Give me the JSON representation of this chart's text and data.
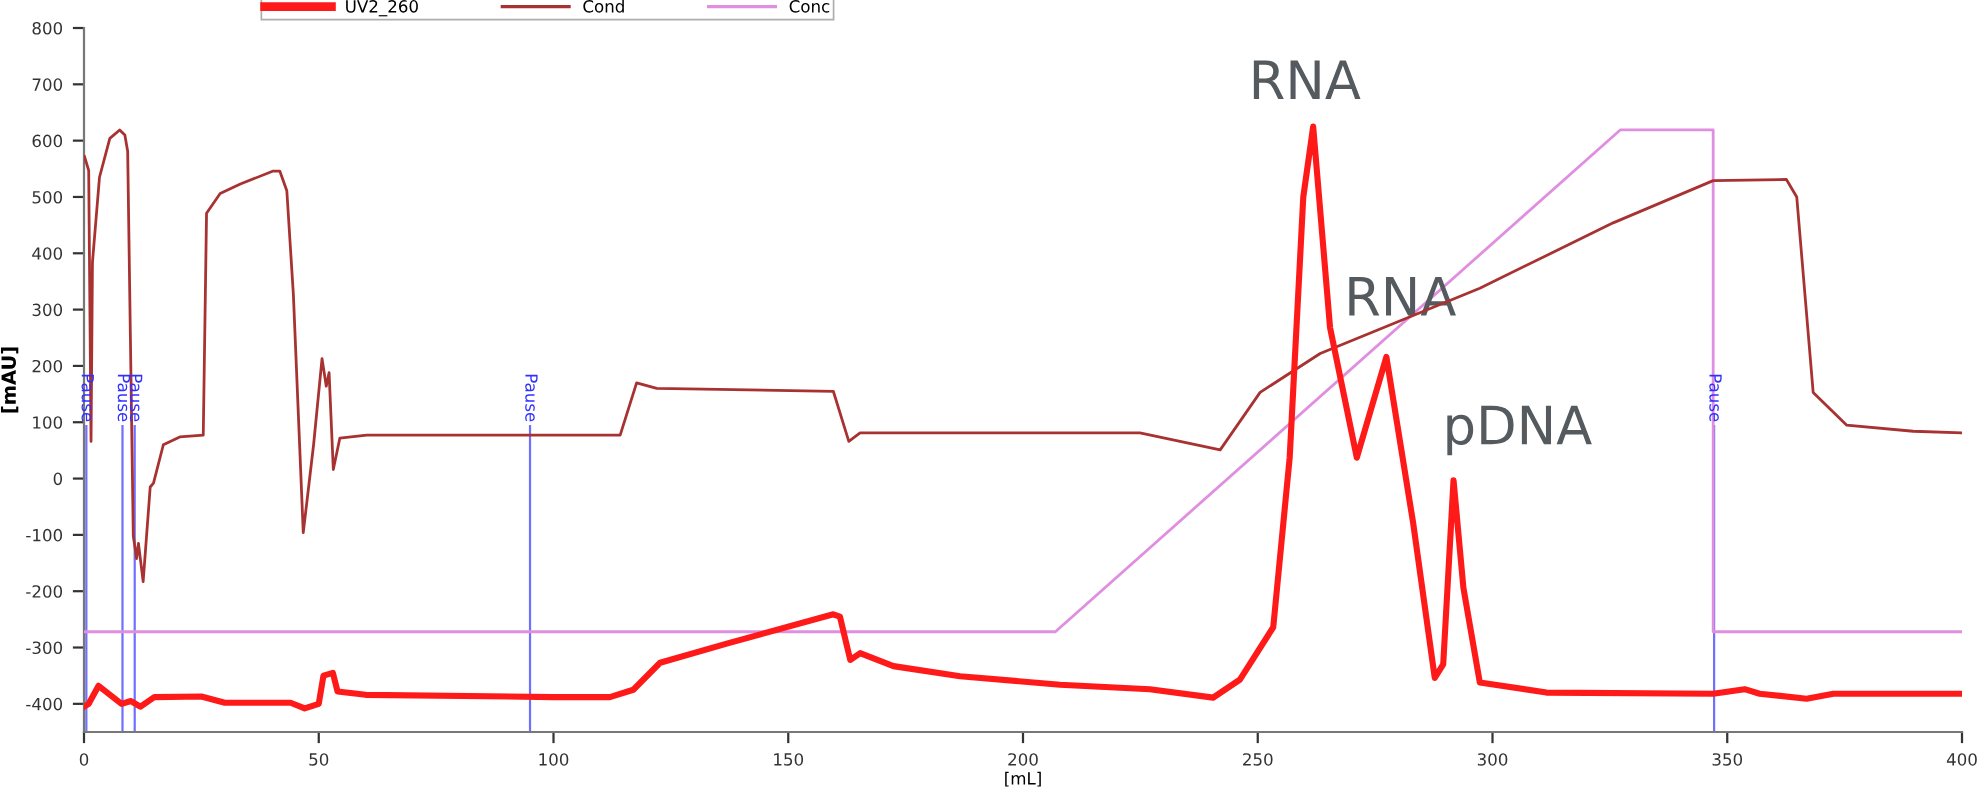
{
  "chart_data": {
    "type": "line",
    "xlabel": "[mL]",
    "ylabel": "[mAU]",
    "xlim": [
      0,
      400
    ],
    "ylim": [
      -450,
      800
    ],
    "xticks": [
      0,
      50,
      100,
      150,
      200,
      250,
      300,
      350,
      400
    ],
    "yticks": [
      -400,
      -300,
      -200,
      -100,
      0,
      100,
      200,
      300,
      400,
      500,
      600,
      700,
      800
    ],
    "grid": false,
    "legend": "top left",
    "line_style": "solid",
    "marker": "none",
    "series": [
      {
        "name": "UV2_260",
        "color": "#ff1a1a",
        "x": [
          0,
          1,
          3.1,
          8,
          10,
          12,
          15,
          25,
          30,
          44,
          47,
          50,
          51,
          53,
          54,
          60,
          100,
          112,
          117,
          122.7,
          136.9,
          159.6,
          161,
          163.2,
          165.3,
          172.4,
          186.6,
          207.9,
          227,
          240.5,
          246.2,
          253.3,
          256.8,
          259.7,
          261.8,
          265.4,
          271.1,
          277.4,
          283.1,
          287.7,
          289.5,
          291.7,
          293.8,
          297.3,
          311.5,
          347,
          353.7,
          356.9,
          366.9,
          372.6,
          400
        ],
        "values": [
          -405,
          -400,
          -368,
          -400,
          -395,
          -405,
          -388,
          -387,
          -398,
          -398,
          -408,
          -400,
          -350,
          -345,
          -378,
          -384,
          -388,
          -388,
          -375,
          -327,
          -293,
          -241,
          -245,
          -322,
          -310,
          -333,
          -351,
          -366,
          -374,
          -389,
          -357,
          -264,
          37,
          500,
          625,
          268,
          37,
          216,
          -79,
          -354,
          -330,
          -3,
          -194,
          -362,
          -380,
          -382,
          -374,
          -382,
          -391,
          -382,
          -382
        ]
      },
      {
        "name": "Cond",
        "color": "#a83232",
        "x": [
          0.1,
          1,
          1.5,
          1.8,
          3.3,
          5.5,
          7.6,
          8.7,
          9.3,
          10.5,
          11.2,
          11.6,
          12.6,
          14.1,
          14.8,
          16.9,
          20.4,
          25.4,
          26.1,
          29,
          33.3,
          40.3,
          41.7,
          43.2,
          44.6,
          46.7,
          48.9,
          50.7,
          51.6,
          52.2,
          53.1,
          54.5,
          60.2,
          95,
          114.2,
          117.7,
          122,
          159.6,
          162.9,
          165.3,
          224.9,
          242,
          250.5,
          263.3,
          297.3,
          325.7,
          347,
          362.6,
          364.8,
          368.3,
          375.4,
          389.6,
          400
        ],
        "values": [
          572,
          547,
          66,
          384,
          535,
          604,
          619,
          610,
          581,
          -102,
          -142,
          -115,
          -183,
          -15,
          -8,
          60,
          74,
          77,
          471,
          506,
          523,
          546,
          546,
          511,
          326,
          -96,
          60,
          213,
          164,
          188,
          16,
          72,
          77,
          77,
          77,
          170,
          160,
          155,
          66,
          81,
          81,
          51,
          153,
          222,
          338,
          454,
          529,
          531,
          500,
          153,
          95,
          84,
          81
        ]
      },
      {
        "name": "Conc",
        "color": "#e08ee0",
        "x": [
          0,
          206.9,
          327.2,
          347,
          347,
          400
        ],
        "values": [
          -272,
          -272,
          619,
          619,
          -272,
          -272
        ]
      }
    ],
    "ref_lines": [
      {
        "axis": "x",
        "value": 0.5,
        "label": "Pause",
        "color": "#7070ff"
      },
      {
        "axis": "x",
        "value": 8.2,
        "label": "Pause",
        "color": "#7070ff"
      },
      {
        "axis": "x",
        "value": 10.8,
        "label": "Pause",
        "color": "#7070ff"
      },
      {
        "axis": "x",
        "value": 95,
        "label": "Pause",
        "color": "#7070ff"
      },
      {
        "axis": "x",
        "value": 347.2,
        "label": "Pause",
        "color": "#7070ff"
      }
    ],
    "annotations": [
      {
        "text": "RNA",
        "x": 261.8,
        "y": 625
      },
      {
        "text": "RNA",
        "x": 277.4,
        "y": 216
      },
      {
        "text": "pDNA",
        "x": 291.7,
        "y": -3
      }
    ]
  }
}
